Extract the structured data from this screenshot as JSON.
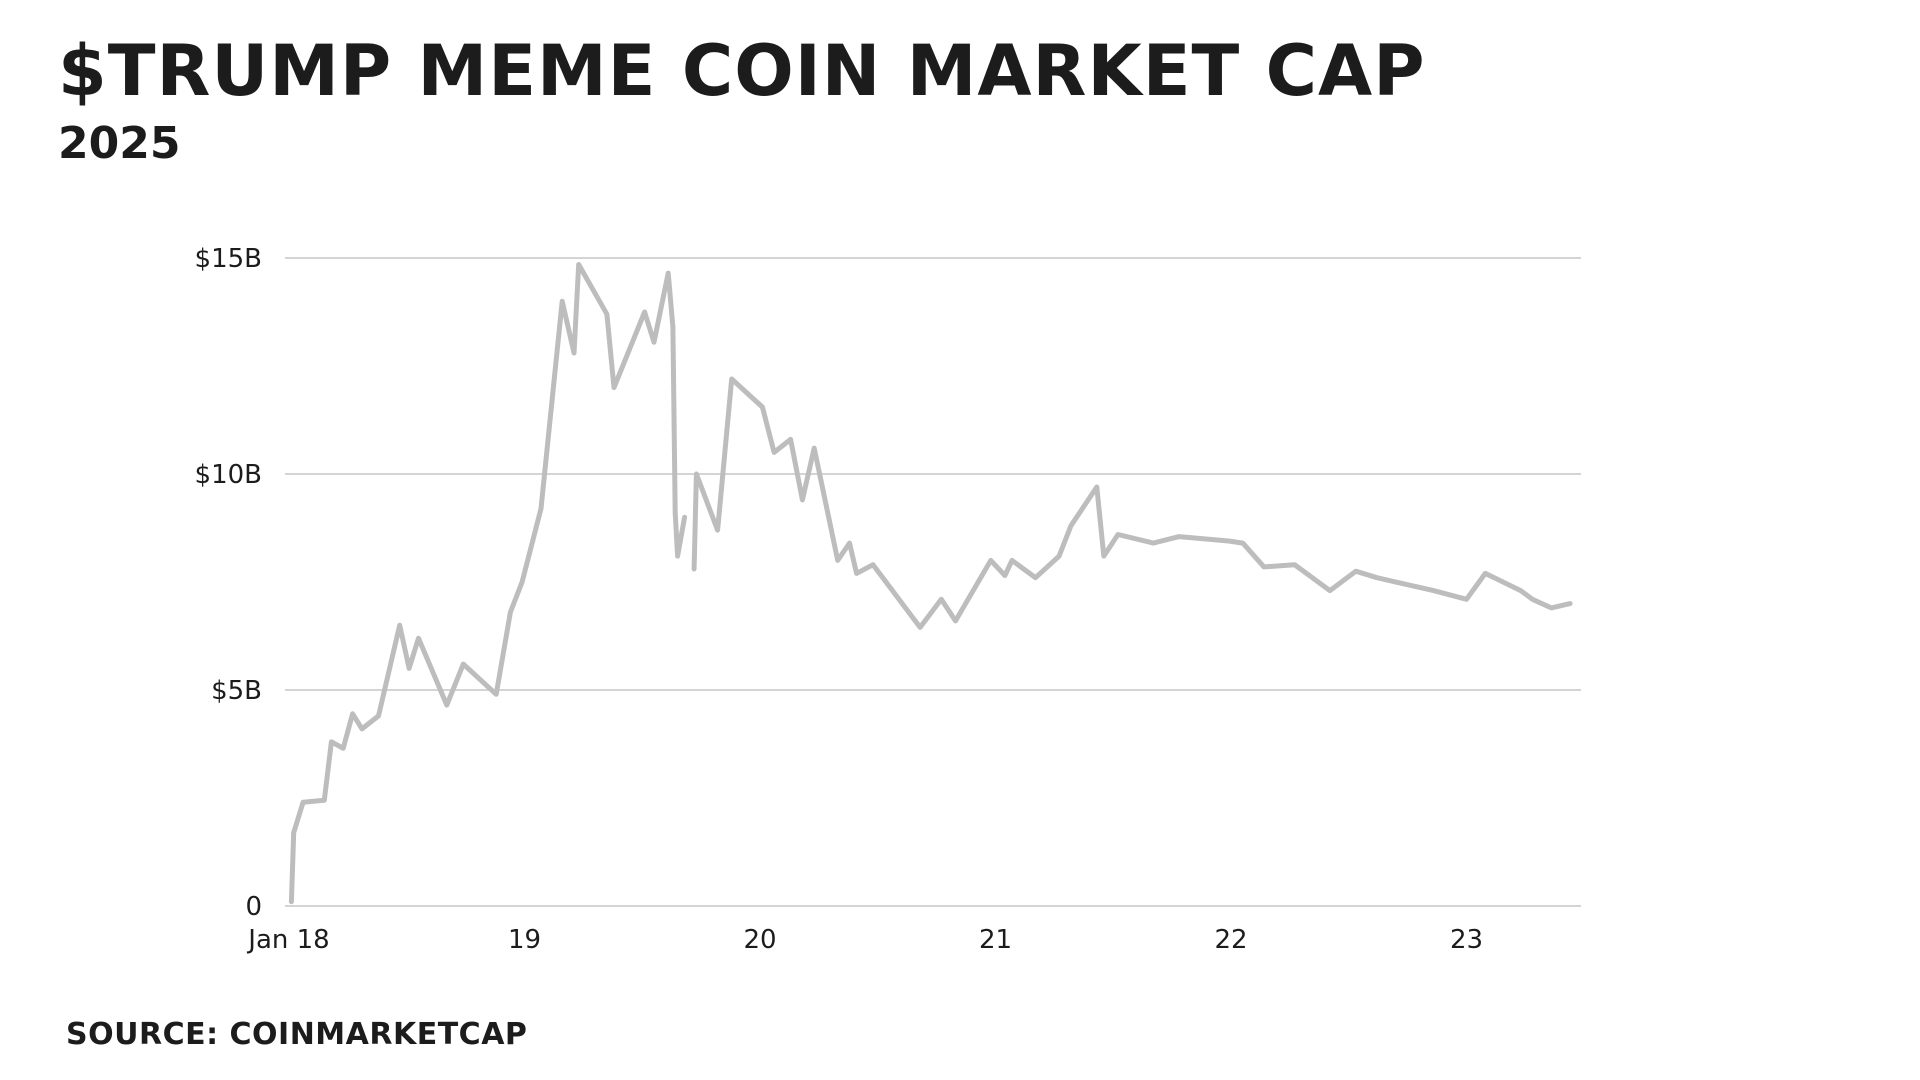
{
  "title": "$TRUMP MEME COIN MARKET CAP",
  "subtitle": "2025",
  "source": "SOURCE: COINMARKETCAP",
  "colors": {
    "line": "#bdbdbd",
    "grid": "#d4d4d4",
    "text": "#1c1c1c"
  },
  "chart_data": {
    "type": "line",
    "title": "$TRUMP MEME COIN MARKET CAP",
    "subtitle": "2025",
    "xlabel": "",
    "ylabel": "",
    "unit": "USD billions",
    "xlim": [
      0,
      5.55
    ],
    "ylim": [
      0,
      15
    ],
    "grid": true,
    "legend": "none",
    "x_ticks": [
      {
        "value": 0,
        "label": "Jan 18"
      },
      {
        "value": 1,
        "label": "19"
      },
      {
        "value": 2,
        "label": "20"
      },
      {
        "value": 3,
        "label": "21"
      },
      {
        "value": 4,
        "label": "22"
      },
      {
        "value": 5,
        "label": "23"
      }
    ],
    "y_ticks": [
      {
        "value": 0,
        "label": "0"
      },
      {
        "value": 5,
        "label": "$5B"
      },
      {
        "value": 10,
        "label": "$10B"
      },
      {
        "value": 15,
        "label": "$15B"
      }
    ],
    "series": [
      {
        "segments": [
          [
            [
              0.01,
              0.1
            ],
            [
              0.02,
              1.7
            ],
            [
              0.06,
              2.4
            ],
            [
              0.15,
              2.45
            ],
            [
              0.18,
              3.8
            ],
            [
              0.23,
              3.65
            ],
            [
              0.27,
              4.45
            ],
            [
              0.31,
              4.1
            ],
            [
              0.38,
              4.4
            ],
            [
              0.47,
              6.5
            ],
            [
              0.51,
              5.5
            ],
            [
              0.55,
              6.2
            ],
            [
              0.67,
              4.65
            ],
            [
              0.74,
              5.6
            ],
            [
              0.88,
              4.9
            ],
            [
              0.94,
              6.8
            ],
            [
              0.99,
              7.5
            ],
            [
              1.07,
              9.2
            ],
            [
              1.16,
              14.0
            ],
            [
              1.21,
              12.8
            ],
            [
              1.23,
              14.85
            ],
            [
              1.35,
              13.7
            ],
            [
              1.38,
              12.0
            ],
            [
              1.51,
              13.75
            ],
            [
              1.55,
              13.05
            ],
            [
              1.61,
              14.65
            ],
            [
              1.63,
              13.4
            ],
            [
              1.64,
              9.1
            ],
            [
              1.65,
              8.1
            ],
            [
              1.68,
              9.0
            ]
          ],
          [
            [
              1.72,
              7.8
            ],
            [
              1.73,
              10.0
            ],
            [
              1.82,
              8.7
            ],
            [
              1.88,
              12.2
            ],
            [
              1.98,
              11.7
            ],
            [
              2.01,
              11.55
            ],
            [
              2.06,
              10.5
            ],
            [
              2.13,
              10.8
            ],
            [
              2.18,
              9.4
            ],
            [
              2.23,
              10.6
            ],
            [
              2.33,
              8.0
            ],
            [
              2.38,
              8.4
            ],
            [
              2.41,
              7.7
            ],
            [
              2.48,
              7.9
            ],
            [
              2.68,
              6.45
            ],
            [
              2.77,
              7.1
            ],
            [
              2.83,
              6.6
            ],
            [
              2.98,
              8.0
            ],
            [
              3.04,
              7.65
            ],
            [
              3.07,
              8.0
            ],
            [
              3.17,
              7.6
            ],
            [
              3.27,
              8.1
            ],
            [
              3.32,
              8.8
            ],
            [
              3.43,
              9.7
            ],
            [
              3.46,
              8.1
            ],
            [
              3.52,
              8.6
            ],
            [
              3.67,
              8.4
            ],
            [
              3.78,
              8.55
            ],
            [
              3.99,
              8.45
            ],
            [
              4.05,
              8.4
            ],
            [
              4.14,
              7.85
            ],
            [
              4.27,
              7.9
            ],
            [
              4.42,
              7.3
            ],
            [
              4.53,
              7.75
            ],
            [
              4.62,
              7.6
            ],
            [
              4.74,
              7.45
            ],
            [
              4.86,
              7.3
            ],
            [
              5.0,
              7.1
            ],
            [
              5.08,
              7.7
            ],
            [
              5.23,
              7.3
            ],
            [
              5.28,
              7.1
            ],
            [
              5.36,
              6.9
            ],
            [
              5.44,
              7.0
            ]
          ]
        ]
      }
    ]
  }
}
